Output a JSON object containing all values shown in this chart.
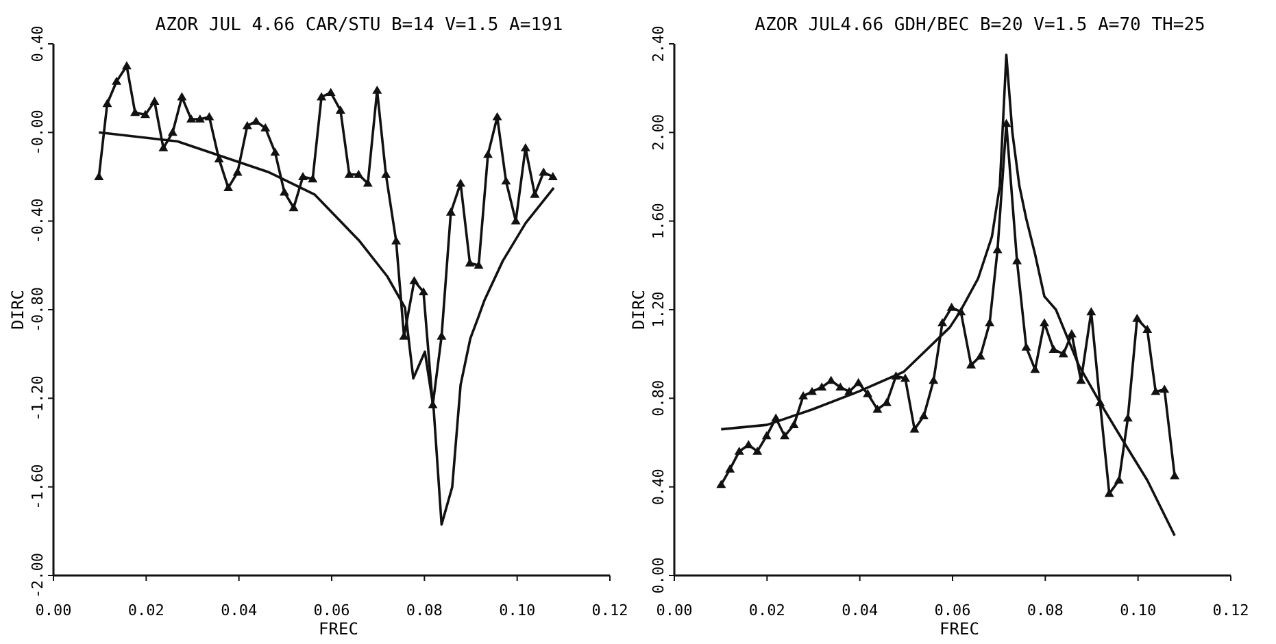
{
  "chart_data": [
    {
      "type": "line",
      "title": "AZOR JUL 4.66 CAR/STU B=14 V=1.5 A=191",
      "xlabel": "FREC",
      "ylabel": "DIRC",
      "xlim": [
        0,
        0.12
      ],
      "xticks": [
        {
          "value": 0,
          "label": "0.00"
        },
        {
          "value": 0.02,
          "label": "0.02"
        },
        {
          "value": 0.04,
          "label": "0.04"
        },
        {
          "value": 0.06,
          "label": "0.06"
        },
        {
          "value": 0.08,
          "label": "0.08"
        },
        {
          "value": 0.1,
          "label": "0.10"
        },
        {
          "value": 0.12,
          "label": "0.12"
        }
      ],
      "ylim": [
        -2,
        0.4
      ],
      "yticks": [
        {
          "value": -2,
          "label": "-2.00"
        },
        {
          "value": -1.6,
          "label": "-1.60"
        },
        {
          "value": -1.2,
          "label": "-1.20"
        },
        {
          "value": -0.8,
          "label": "-0.80"
        },
        {
          "value": -0.4,
          "label": "-0.40"
        },
        {
          "value": 0,
          "label": "-0.00"
        },
        {
          "value": 0.4,
          "label": "0.40"
        }
      ],
      "marker": "triangle",
      "line_style": "solid",
      "series": [
        {
          "color": "#111111",
          "x": [
            0.0098,
            0.0116,
            0.0136,
            0.0158,
            0.0176,
            0.0198,
            0.0218,
            0.0237,
            0.0257,
            0.0277,
            0.0297,
            0.0316,
            0.0336,
            0.0357,
            0.0377,
            0.0397,
            0.0418,
            0.0437,
            0.0457,
            0.0478,
            0.0498,
            0.0518,
            0.0538,
            0.0559,
            0.0578,
            0.0598,
            0.0619,
            0.0638,
            0.0658,
            0.0678,
            0.0698,
            0.0717,
            0.0739,
            0.0756,
            0.0778,
            0.0798,
            0.0818,
            0.0837,
            0.0857,
            0.0878,
            0.0898,
            0.0917,
            0.0937,
            0.0957,
            0.0976,
            0.0997,
            0.1018,
            0.1038,
            0.1057,
            0.1077
          ],
          "values": [
            -0.2,
            0.13,
            0.23,
            0.3,
            0.09,
            0.08,
            0.14,
            -0.07,
            0,
            0.16,
            0.06,
            0.06,
            0.07,
            -0.12,
            -0.25,
            -0.18,
            0.03,
            0.05,
            0.02,
            -0.09,
            -0.27,
            -0.34,
            -0.2,
            -0.21,
            0.16,
            0.18,
            0.1,
            -0.19,
            -0.19,
            -0.23,
            0.19,
            -0.19,
            -0.49,
            -0.92,
            -0.67,
            -0.72,
            -1.23,
            -0.92,
            -0.36,
            -0.23,
            -0.59,
            -0.6,
            -0.1,
            0.07,
            -0.22,
            -0.4,
            -0.07,
            -0.28,
            -0.18,
            -0.2
          ]
        },
        {
          "color": "#111111",
          "marker": "none",
          "x": [
            0.0098,
            0.0267,
            0.0465,
            0.0563,
            0.066,
            0.072,
            0.0758,
            0.0776,
            0.0801,
            0.082,
            0.0837,
            0.086,
            0.0878,
            0.0899,
            0.0917,
            0.0929,
            0.0969,
            0.1018,
            0.1079
          ],
          "values": [
            0,
            -0.04,
            -0.18,
            -0.28,
            -0.49,
            -0.65,
            -0.79,
            -1.11,
            -0.99,
            -1.25,
            -1.77,
            -1.6,
            -1.14,
            -0.93,
            -0.83,
            -0.76,
            -0.58,
            -0.41,
            -0.25
          ]
        }
      ]
    },
    {
      "type": "line",
      "title": "AZOR JUL4.66 GDH/BEC B=20 V=1.5 A=70 TH=25",
      "xlabel": "FREC",
      "ylabel": "DIRC",
      "xlim": [
        0,
        0.12
      ],
      "xticks": [
        {
          "value": 0,
          "label": "0.00"
        },
        {
          "value": 0.02,
          "label": "0.02"
        },
        {
          "value": 0.04,
          "label": "0.04"
        },
        {
          "value": 0.06,
          "label": "0.06"
        },
        {
          "value": 0.08,
          "label": "0.08"
        },
        {
          "value": 0.1,
          "label": "0.10"
        },
        {
          "value": 0.12,
          "label": "0.12"
        }
      ],
      "ylim": [
        0,
        2.4
      ],
      "yticks": [
        {
          "value": 0,
          "label": "0.00"
        },
        {
          "value": 0.4,
          "label": "0.40"
        },
        {
          "value": 0.8,
          "label": "0.80"
        },
        {
          "value": 1.2,
          "label": "1.20"
        },
        {
          "value": 1.6,
          "label": "1.60"
        },
        {
          "value": 2,
          "label": "2.00"
        },
        {
          "value": 2.4,
          "label": "2.40"
        }
      ],
      "marker": "triangle",
      "line_style": "solid",
      "series": [
        {
          "color": "#111111",
          "x": [
            0.0101,
            0.012,
            0.014,
            0.016,
            0.0179,
            0.0199,
            0.0219,
            0.0238,
            0.0258,
            0.0278,
            0.0297,
            0.0318,
            0.0338,
            0.0358,
            0.0377,
            0.0397,
            0.0417,
            0.0438,
            0.0458,
            0.0478,
            0.0498,
            0.0518,
            0.0538,
            0.0559,
            0.0578,
            0.0598,
            0.0618,
            0.064,
            0.066,
            0.068,
            0.0697,
            0.0716,
            0.0739,
            0.0759,
            0.0778,
            0.0798,
            0.0818,
            0.0839,
            0.0857,
            0.0877,
            0.0899,
            0.0918,
            0.0938,
            0.0959,
            0.0978,
            0.0998,
            0.102,
            0.1038,
            0.1057,
            0.1079
          ],
          "values": [
            0.41,
            0.48,
            0.56,
            0.59,
            0.56,
            0.63,
            0.71,
            0.63,
            0.68,
            0.81,
            0.83,
            0.85,
            0.88,
            0.85,
            0.83,
            0.87,
            0.82,
            0.75,
            0.78,
            0.9,
            0.89,
            0.66,
            0.72,
            0.88,
            1.14,
            1.21,
            1.19,
            0.95,
            0.99,
            1.14,
            1.47,
            2.04,
            1.42,
            1.03,
            0.93,
            1.14,
            1.02,
            1.0,
            1.09,
            0.88,
            1.19,
            0.78,
            0.37,
            0.43,
            0.71,
            1.16,
            1.11,
            0.83,
            0.84,
            0.45
          ]
        },
        {
          "color": "#111111",
          "marker": "none",
          "x": [
            0.0101,
            0.02,
            0.0298,
            0.0397,
            0.0495,
            0.0594,
            0.0616,
            0.0655,
            0.0685,
            0.0702,
            0.0716,
            0.0729,
            0.0744,
            0.0759,
            0.0778,
            0.0798,
            0.0823,
            0.0872,
            0.0921,
            0.097,
            0.102,
            0.1079
          ],
          "values": [
            0.66,
            0.68,
            0.75,
            0.83,
            0.92,
            1.12,
            1.19,
            1.34,
            1.53,
            1.76,
            2.35,
            2.0,
            1.76,
            1.61,
            1.45,
            1.26,
            1.2,
            0.95,
            0.77,
            0.6,
            0.43,
            0.18
          ]
        }
      ]
    }
  ]
}
